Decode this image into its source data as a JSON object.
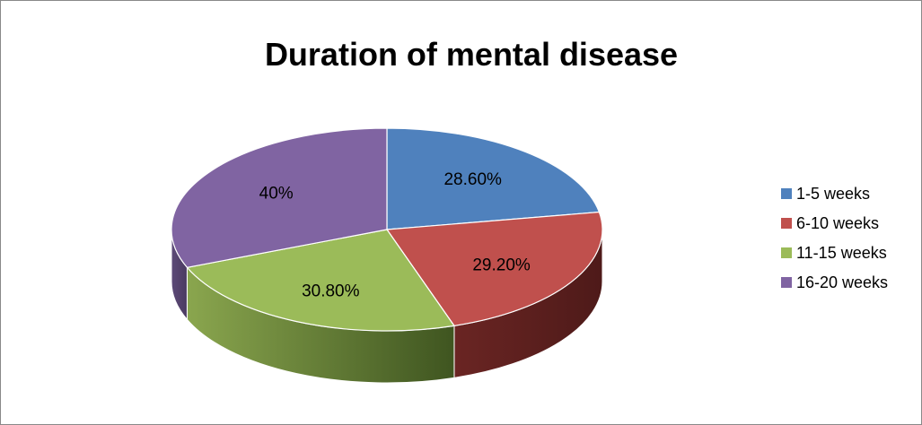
{
  "chart_data": {
    "type": "pie",
    "title": "Duration of mental disease",
    "categories": [
      "1-5 weeks",
      "6-10 weeks",
      "11-15 weeks",
      "16-20 weeks"
    ],
    "values": [
      28.6,
      29.2,
      30.8,
      40
    ],
    "data_labels": [
      "28.60%",
      "29.20%",
      "30.80%",
      "40%"
    ],
    "colors": [
      "#4F81BD",
      "#C0504D",
      "#9BBB59",
      "#8064A2"
    ],
    "three_d": true,
    "legend_position": "right"
  }
}
